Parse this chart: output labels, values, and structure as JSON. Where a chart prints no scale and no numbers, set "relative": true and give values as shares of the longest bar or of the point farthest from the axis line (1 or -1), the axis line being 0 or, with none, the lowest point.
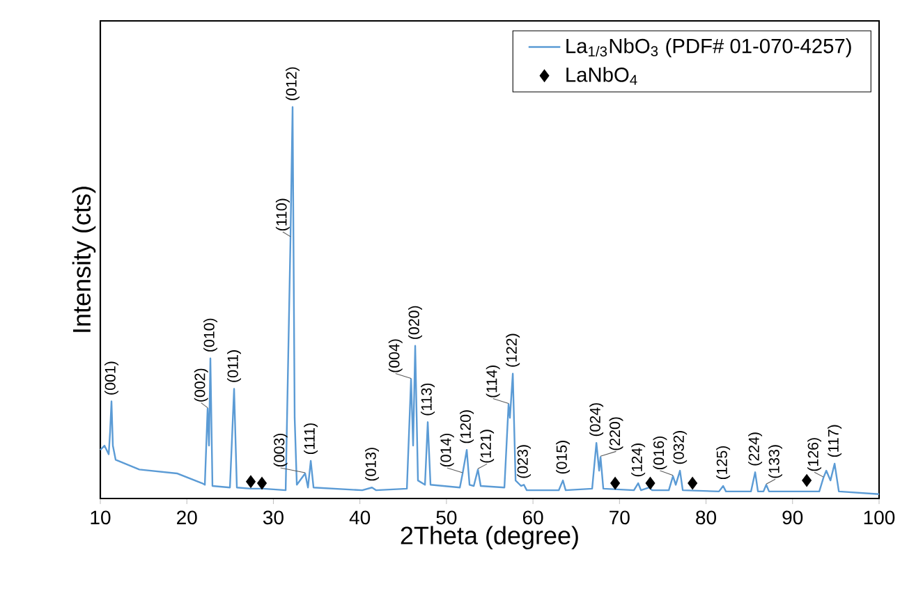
{
  "chart_data": {
    "type": "line",
    "xlabel": "2Theta (degree)",
    "ylabel": "Intensity (cts)",
    "relative": true,
    "tick_labels": "x",
    "xlim": [
      10,
      100
    ],
    "xticks": [
      10,
      20,
      30,
      40,
      50,
      60,
      70,
      80,
      90,
      100
    ],
    "grid": false,
    "legend": "top right",
    "series": [
      {
        "name": "La$_{1/3}$NbO$_{3}$ (PDF# 01-070-4257)",
        "color": "#5b9bd5",
        "marker": "none",
        "line_style": "solid",
        "x": [
          10.0,
          10.48,
          10.97,
          11.13,
          11.29,
          11.45,
          11.77,
          14.51,
          18.86,
          21.76,
          22.08,
          22.4,
          22.56,
          22.72,
          22.96,
          24.98,
          25.46,
          25.78,
          27.39,
          28.84,
          31.42,
          31.98,
          32.22,
          32.46,
          32.71,
          33.67,
          34.0,
          34.32,
          34.64,
          40.27,
          41.4,
          41.88,
          45.43,
          45.91,
          46.15,
          46.39,
          46.71,
          47.52,
          47.84,
          48.16,
          51.55,
          51.87,
          52.35,
          52.67,
          53.16,
          53.64,
          53.96,
          56.7,
          57.18,
          57.34,
          57.67,
          57.99,
          58.63,
          58.95,
          59.28,
          62.98,
          63.46,
          63.78,
          66.84,
          67.33,
          67.65,
          67.81,
          68.13,
          71.67,
          72.16,
          72.48,
          73.45,
          73.77,
          75.7,
          76.18,
          76.5,
          76.99,
          77.31,
          81.5,
          81.98,
          82.3,
          85.2,
          85.68,
          86.0,
          86.64,
          86.96,
          87.28,
          93.09,
          93.57,
          93.9,
          94.38,
          94.86,
          95.35,
          100.0
        ],
        "values": [
          0.124,
          0.135,
          0.113,
          0.17,
          0.248,
          0.135,
          0.099,
          0.074,
          0.064,
          0.039,
          0.035,
          0.23,
          0.135,
          0.358,
          0.032,
          0.028,
          0.28,
          0.028,
          0.025,
          0.025,
          0.021,
          0.667,
          1.0,
          0.206,
          0.035,
          0.064,
          0.028,
          0.096,
          0.028,
          0.021,
          0.028,
          0.021,
          0.025,
          0.305,
          0.135,
          0.39,
          0.046,
          0.035,
          0.195,
          0.035,
          0.028,
          0.064,
          0.124,
          0.035,
          0.032,
          0.074,
          0.032,
          0.028,
          0.241,
          0.206,
          0.319,
          0.046,
          0.032,
          0.035,
          0.021,
          0.021,
          0.046,
          0.021,
          0.025,
          0.142,
          0.071,
          0.106,
          0.025,
          0.021,
          0.039,
          0.021,
          0.028,
          0.021,
          0.021,
          0.057,
          0.035,
          0.071,
          0.021,
          0.018,
          0.032,
          0.018,
          0.018,
          0.067,
          0.018,
          0.018,
          0.035,
          0.018,
          0.018,
          0.053,
          0.071,
          0.046,
          0.089,
          0.018,
          0.011
        ]
      },
      {
        "name": "LaNbO$_{4}$",
        "type": "scatter",
        "color": "#000000",
        "marker": "diamond",
        "x": [
          27.39,
          28.68,
          69.5,
          73.56,
          78.44,
          91.64
        ],
        "values": [
          0.043,
          0.039,
          0.039,
          0.039,
          0.039,
          0.046
        ]
      }
    ],
    "annotations": [
      {
        "text": "(001)",
        "x": 11.29,
        "y": 0.248
      },
      {
        "text": "(002)",
        "x": 22.4,
        "y": 0.23
      },
      {
        "text": "(010)",
        "x": 22.72,
        "y": 0.358
      },
      {
        "text": "(011)",
        "x": 25.46,
        "y": 0.28
      },
      {
        "text": "(012)",
        "x": 32.22,
        "y": 1.0
      },
      {
        "text": "(110)",
        "x": 31.98,
        "y": 0.667
      },
      {
        "text": "(003)",
        "x": 33.67,
        "y": 0.064
      },
      {
        "text": "(111)",
        "x": 34.32,
        "y": 0.096
      },
      {
        "text": "(013)",
        "x": 41.4,
        "y": 0.028
      },
      {
        "text": "(004)",
        "x": 45.91,
        "y": 0.305
      },
      {
        "text": "(020)",
        "x": 46.39,
        "y": 0.39
      },
      {
        "text": "(113)",
        "x": 47.84,
        "y": 0.195
      },
      {
        "text": "(014)",
        "x": 51.87,
        "y": 0.064
      },
      {
        "text": "(120)",
        "x": 52.35,
        "y": 0.124
      },
      {
        "text": "(121)",
        "x": 53.64,
        "y": 0.074
      },
      {
        "text": "(114)",
        "x": 57.18,
        "y": 0.241
      },
      {
        "text": "(122)",
        "x": 57.67,
        "y": 0.319
      },
      {
        "text": "(023)",
        "x": 58.95,
        "y": 0.035
      },
      {
        "text": "(015)",
        "x": 63.46,
        "y": 0.046
      },
      {
        "text": "(024)",
        "x": 67.33,
        "y": 0.142
      },
      {
        "text": "(220)",
        "x": 67.81,
        "y": 0.106
      },
      {
        "text": "(124)",
        "x": 72.16,
        "y": 0.039
      },
      {
        "text": "(016)",
        "x": 76.18,
        "y": 0.057
      },
      {
        "text": "(032)",
        "x": 76.99,
        "y": 0.071
      },
      {
        "text": "(125)",
        "x": 81.98,
        "y": 0.032
      },
      {
        "text": "(224)",
        "x": 85.68,
        "y": 0.067
      },
      {
        "text": "(133)",
        "x": 86.96,
        "y": 0.035
      },
      {
        "text": "(126)",
        "x": 93.57,
        "y": 0.053
      },
      {
        "text": "(117)",
        "x": 94.86,
        "y": 0.089
      }
    ]
  }
}
